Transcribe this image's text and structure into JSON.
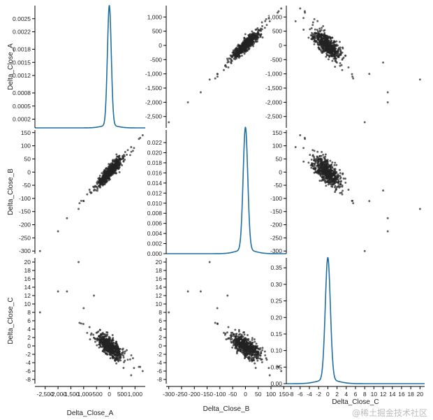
{
  "watermark": "@稀土掘金技术社区",
  "colors": {
    "kde": "#1f6ea0",
    "point": "#222222",
    "axis": "#000000"
  },
  "chart_data": {
    "type": "scatter",
    "title": "",
    "variables": [
      "Delta_Close_A",
      "Delta_Close_B",
      "Delta_Close_C"
    ],
    "layout": "3x3 scatter matrix, diagonal = kernel density estimate",
    "axes": {
      "Delta_Close_A": {
        "range": [
          -2900,
          1400
        ],
        "ticks": [
          -2500,
          -2000,
          -1500,
          -1000,
          -500,
          0,
          500,
          1000
        ],
        "tick_labels": [
          "-2,500",
          "-2,000",
          "-1,500",
          "-1,000",
          "-500",
          "0",
          "500",
          "1,000"
        ],
        "row_ticks": [
          -2500,
          -2000,
          -1500,
          -1000,
          -500,
          0,
          500,
          1000
        ],
        "row_tick_labels": [
          "-2,500",
          "-2,000",
          "-1,500",
          "-1,000",
          "-500",
          "0",
          "500",
          "1,000"
        ]
      },
      "Delta_Close_B": {
        "range": [
          -310,
          160
        ],
        "ticks": [
          -300,
          -250,
          -200,
          -150,
          -100,
          -50,
          0,
          50,
          100,
          150
        ],
        "tick_labels": [
          "-300",
          "-250",
          "-200",
          "-150",
          "-100",
          "-50",
          "0",
          "50",
          "100",
          "150"
        ],
        "row_ticks": [
          -300,
          -250,
          -200,
          -150,
          -100,
          -50,
          0,
          50,
          100,
          150
        ],
        "row_tick_labels": [
          "-300",
          "-250",
          "-200",
          "-150",
          "-100",
          "-50",
          "0",
          "50",
          "100",
          "150"
        ]
      },
      "Delta_Close_C": {
        "range": [
          -9,
          21
        ],
        "ticks": [
          -8,
          -6,
          -4,
          -2,
          0,
          2,
          4,
          6,
          8,
          10,
          12,
          14,
          16,
          18,
          20
        ],
        "tick_labels": [
          "-8",
          "-6",
          "-4",
          "-2",
          "0",
          "2",
          "4",
          "6",
          "8",
          "10",
          "12",
          "14",
          "16",
          "18",
          "20"
        ],
        "row_ticks": [
          -8,
          -6,
          -4,
          -2,
          0,
          2,
          4,
          6,
          8,
          10,
          12,
          14,
          16,
          18,
          20
        ],
        "row_tick_labels": [
          "-8",
          "-6",
          "-4",
          "-2",
          "0",
          "2",
          "4",
          "6",
          "8",
          "10",
          "12",
          "14",
          "16",
          "18",
          "20"
        ]
      }
    },
    "density": [
      {
        "variable": "Delta_Close_A",
        "ylim": [
          0,
          0.0028
        ],
        "yticks": [
          0.0002,
          0.0005,
          0.0008,
          0.0012,
          0.0015,
          0.0018,
          0.0022,
          0.0025
        ],
        "ytick_labels": [
          "0.0002",
          "0.0005",
          "0.0008",
          "0.0012",
          "0.0015",
          "0.0018",
          "0.0022",
          "0.0025"
        ],
        "center": 0,
        "spread": 75,
        "peak": 0.00275,
        "shoulder_spread": 300,
        "shoulder_peak": 6e-05
      },
      {
        "variable": "Delta_Close_B",
        "ylim": [
          0,
          0.0245
        ],
        "yticks": [
          0,
          0.002,
          0.004,
          0.006,
          0.008,
          0.01,
          0.012,
          0.014,
          0.016,
          0.018,
          0.02,
          0.022
        ],
        "ytick_labels": [
          "0.000",
          "0.002",
          "0.004",
          "0.006",
          "0.008",
          "0.010",
          "0.012",
          "0.014",
          "0.016",
          "0.018",
          "0.020",
          "0.022"
        ],
        "center": 0,
        "spread": 9,
        "peak": 0.0243,
        "shoulder_spread": 35,
        "shoulder_peak": 0.0008
      },
      {
        "variable": "Delta_Close_C",
        "ylim": [
          0,
          0.38
        ],
        "yticks": [
          0,
          0.05,
          0.1,
          0.15,
          0.2,
          0.25,
          0.3,
          0.35
        ],
        "ytick_labels": [
          "0.00",
          "0.05",
          "0.10",
          "0.15",
          "0.20",
          "0.25",
          "0.30",
          "0.35"
        ],
        "center": 0,
        "spread": 0.55,
        "peak": 0.37,
        "shoulder_spread": 2.2,
        "shoulder_peak": 0.012
      }
    ],
    "relationships": {
      "A_vs_B": "strong positive linear, B ≈ 0.1 × A",
      "A_vs_C": "negative, C ≈ -0.004 × A",
      "B_vs_C": "negative, C ≈ -0.04 × B"
    },
    "sample_size": 600,
    "outliers": [
      {
        "A": -2700,
        "B": -300,
        "C": 8
      },
      {
        "A": -2000,
        "B": -225,
        "C": 13
      },
      {
        "A": -1650,
        "B": -175,
        "C": 13
      },
      {
        "A": -1200,
        "B": -140,
        "C": 20
      },
      {
        "A": -1000,
        "B": -110,
        "C": 9
      },
      {
        "A": 1200,
        "B": 130,
        "C": -5
      },
      {
        "A": 1300,
        "B": 140,
        "C": -6
      },
      {
        "A": 850,
        "B": 95,
        "C": -7
      },
      {
        "A": -600,
        "B": -70,
        "C": 12
      }
    ]
  }
}
